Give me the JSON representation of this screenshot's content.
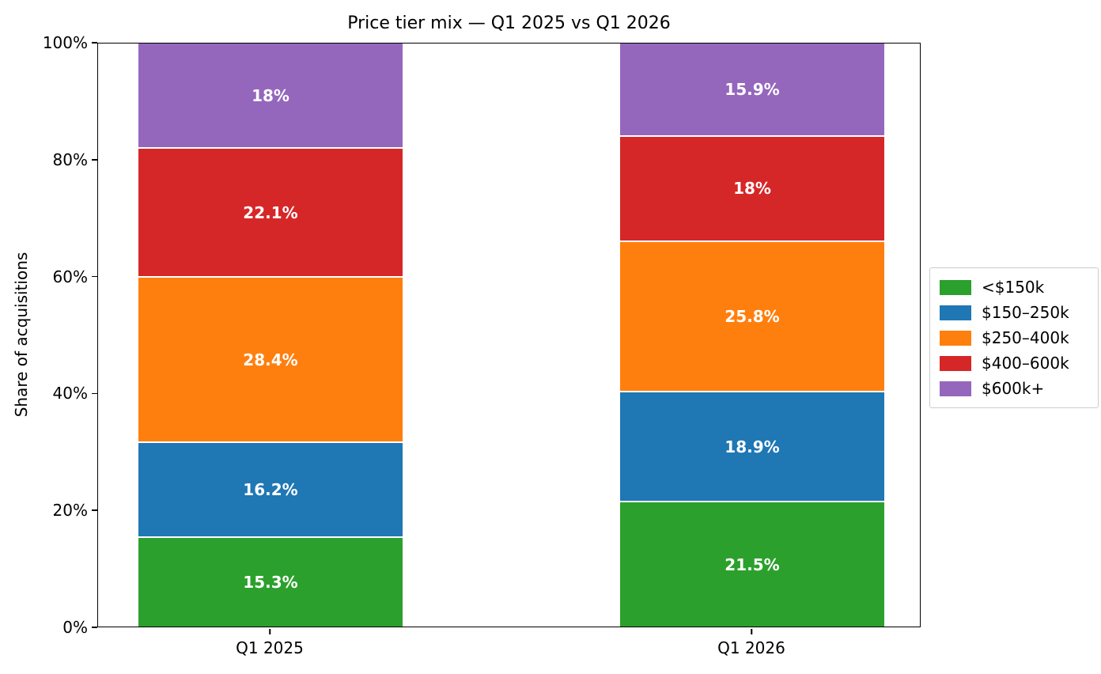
{
  "chart_data": {
    "type": "bar",
    "stacked": true,
    "title": "Price tier mix — Q1 2025 vs Q1 2026",
    "ylabel": "Share of acquisitions",
    "xlabel": "",
    "ylim": [
      0,
      100
    ],
    "yticks": [
      "0%",
      "20%",
      "40%",
      "60%",
      "80%",
      "100%"
    ],
    "grid": false,
    "legend_position": "center right",
    "categories": [
      "Q1 2025",
      "Q1 2026"
    ],
    "series": [
      {
        "name": "<$150k",
        "color": "#2ca02c",
        "values": [
          15.3,
          21.5
        ]
      },
      {
        "name": "$150–250k",
        "color": "#1f77b4",
        "values": [
          16.2,
          18.9
        ]
      },
      {
        "name": "$250–400k",
        "color": "#ff7f0e",
        "values": [
          28.4,
          25.8
        ]
      },
      {
        "name": "$400–600k",
        "color": "#d62728",
        "values": [
          22.1,
          18
        ]
      },
      {
        "name": "$600k+",
        "color": "#9467bd",
        "values": [
          18,
          15.9
        ]
      }
    ],
    "segment_label_format": "percent"
  }
}
